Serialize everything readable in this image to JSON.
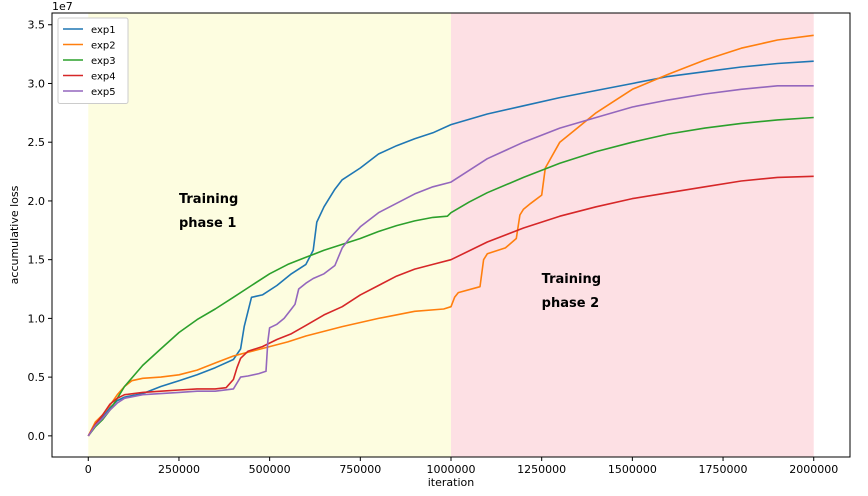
{
  "chart_data": {
    "type": "line",
    "title": "",
    "xlabel": "iteration",
    "ylabel": "accumulative loss",
    "y_offset_label": "1e7",
    "xlim": [
      -100000,
      2100000
    ],
    "ylim": [
      -0.18,
      3.6
    ],
    "xticks": [
      0,
      250000,
      500000,
      750000,
      1000000,
      1250000,
      1500000,
      1750000,
      2000000
    ],
    "xtick_labels": [
      "0",
      "250000",
      "500000",
      "750000",
      "1000000",
      "1250000",
      "1500000",
      "1750000",
      "2000000"
    ],
    "yticks": [
      0.0,
      0.5,
      1.0,
      1.5,
      2.0,
      2.5,
      3.0,
      3.5
    ],
    "ytick_labels": [
      "0.0",
      "0.5",
      "1.0",
      "1.5",
      "2.0",
      "2.5",
      "3.0",
      "3.5"
    ],
    "grid": false,
    "legend_position": "top-left",
    "regions": [
      {
        "x_start": 0,
        "x_end": 1000000,
        "color": "#fdfde0",
        "label_lines": [
          "Training",
          "phase 1"
        ],
        "label_x": 250000,
        "label_y": 2.0
      },
      {
        "x_start": 1000000,
        "x_end": 2000000,
        "color": "#fde0e4",
        "label_lines": [
          "Training",
          "phase 2"
        ],
        "label_x": 1250000,
        "label_y": 1.32
      }
    ],
    "series": [
      {
        "name": "exp1",
        "color": "#1f77b4",
        "x": [
          0,
          20000,
          40000,
          60000,
          80000,
          100000,
          150000,
          200000,
          250000,
          300000,
          350000,
          400000,
          420000,
          430000,
          450000,
          480000,
          520000,
          560000,
          600000,
          620000,
          630000,
          650000,
          680000,
          700000,
          750000,
          800000,
          850000,
          900000,
          950000,
          1000000,
          1100000,
          1200000,
          1300000,
          1400000,
          1500000,
          1600000,
          1700000,
          1800000,
          1900000,
          2000000
        ],
        "y": [
          0.0,
          0.1,
          0.16,
          0.24,
          0.3,
          0.33,
          0.36,
          0.42,
          0.47,
          0.52,
          0.58,
          0.65,
          0.74,
          0.93,
          1.18,
          1.2,
          1.28,
          1.38,
          1.46,
          1.58,
          1.82,
          1.95,
          2.1,
          2.18,
          2.28,
          2.4,
          2.47,
          2.53,
          2.58,
          2.65,
          2.74,
          2.81,
          2.88,
          2.94,
          3.0,
          3.06,
          3.1,
          3.14,
          3.17,
          3.19
        ]
      },
      {
        "name": "exp2",
        "color": "#ff7f0e",
        "x": [
          0,
          20000,
          40000,
          60000,
          80000,
          100000,
          120000,
          150000,
          200000,
          250000,
          300000,
          350000,
          400000,
          450000,
          500000,
          550000,
          600000,
          700000,
          800000,
          900000,
          980000,
          1000000,
          1010000,
          1020000,
          1080000,
          1090000,
          1100000,
          1150000,
          1180000,
          1190000,
          1200000,
          1220000,
          1250000,
          1260000,
          1300000,
          1340000,
          1400000,
          1450000,
          1500000,
          1600000,
          1700000,
          1800000,
          1900000,
          2000000
        ],
        "y": [
          0.0,
          0.12,
          0.18,
          0.26,
          0.35,
          0.42,
          0.47,
          0.49,
          0.5,
          0.52,
          0.56,
          0.62,
          0.68,
          0.72,
          0.76,
          0.8,
          0.85,
          0.93,
          1.0,
          1.06,
          1.08,
          1.1,
          1.18,
          1.22,
          1.27,
          1.5,
          1.55,
          1.6,
          1.68,
          1.88,
          1.93,
          1.98,
          2.05,
          2.28,
          2.5,
          2.6,
          2.75,
          2.85,
          2.95,
          3.08,
          3.2,
          3.3,
          3.37,
          3.41
        ]
      },
      {
        "name": "exp3",
        "color": "#2ca02c",
        "x": [
          0,
          20000,
          40000,
          60000,
          80000,
          100000,
          150000,
          200000,
          250000,
          300000,
          350000,
          400000,
          450000,
          500000,
          550000,
          600000,
          650000,
          700000,
          750000,
          800000,
          850000,
          900000,
          950000,
          990000,
          1000000,
          1050000,
          1100000,
          1200000,
          1300000,
          1400000,
          1500000,
          1600000,
          1700000,
          1800000,
          1900000,
          2000000
        ],
        "y": [
          0.0,
          0.08,
          0.14,
          0.22,
          0.32,
          0.42,
          0.6,
          0.74,
          0.88,
          0.99,
          1.08,
          1.18,
          1.28,
          1.38,
          1.46,
          1.52,
          1.58,
          1.63,
          1.68,
          1.74,
          1.79,
          1.83,
          1.86,
          1.87,
          1.9,
          1.99,
          2.07,
          2.2,
          2.32,
          2.42,
          2.5,
          2.57,
          2.62,
          2.66,
          2.69,
          2.71
        ]
      },
      {
        "name": "exp4",
        "color": "#d62728",
        "x": [
          0,
          20000,
          40000,
          60000,
          80000,
          100000,
          150000,
          200000,
          250000,
          300000,
          350000,
          380000,
          400000,
          410000,
          420000,
          440000,
          480000,
          520000,
          560000,
          600000,
          650000,
          700000,
          750000,
          800000,
          850000,
          900000,
          950000,
          1000000,
          1100000,
          1200000,
          1300000,
          1400000,
          1500000,
          1600000,
          1700000,
          1800000,
          1900000,
          2000000
        ],
        "y": [
          0.0,
          0.1,
          0.18,
          0.27,
          0.32,
          0.35,
          0.37,
          0.38,
          0.39,
          0.4,
          0.4,
          0.41,
          0.48,
          0.58,
          0.66,
          0.72,
          0.76,
          0.82,
          0.87,
          0.94,
          1.03,
          1.1,
          1.2,
          1.28,
          1.36,
          1.42,
          1.46,
          1.5,
          1.65,
          1.77,
          1.87,
          1.95,
          2.02,
          2.07,
          2.12,
          2.17,
          2.2,
          2.21
        ]
      },
      {
        "name": "exp5",
        "color": "#9467bd",
        "x": [
          0,
          20000,
          40000,
          60000,
          80000,
          100000,
          150000,
          200000,
          250000,
          300000,
          350000,
          400000,
          420000,
          440000,
          470000,
          490000,
          495000,
          500000,
          520000,
          540000,
          560000,
          570000,
          580000,
          600000,
          620000,
          650000,
          680000,
          700000,
          720000,
          750000,
          800000,
          850000,
          900000,
          950000,
          1000000,
          1100000,
          1200000,
          1300000,
          1400000,
          1500000,
          1600000,
          1700000,
          1800000,
          1900000,
          2000000
        ],
        "y": [
          0.0,
          0.09,
          0.15,
          0.22,
          0.28,
          0.32,
          0.35,
          0.36,
          0.37,
          0.38,
          0.38,
          0.4,
          0.5,
          0.51,
          0.53,
          0.55,
          0.8,
          0.92,
          0.95,
          1.0,
          1.08,
          1.12,
          1.25,
          1.3,
          1.34,
          1.38,
          1.45,
          1.6,
          1.68,
          1.78,
          1.9,
          1.98,
          2.06,
          2.12,
          2.16,
          2.36,
          2.5,
          2.62,
          2.71,
          2.8,
          2.86,
          2.91,
          2.95,
          2.98,
          2.98
        ]
      }
    ]
  }
}
